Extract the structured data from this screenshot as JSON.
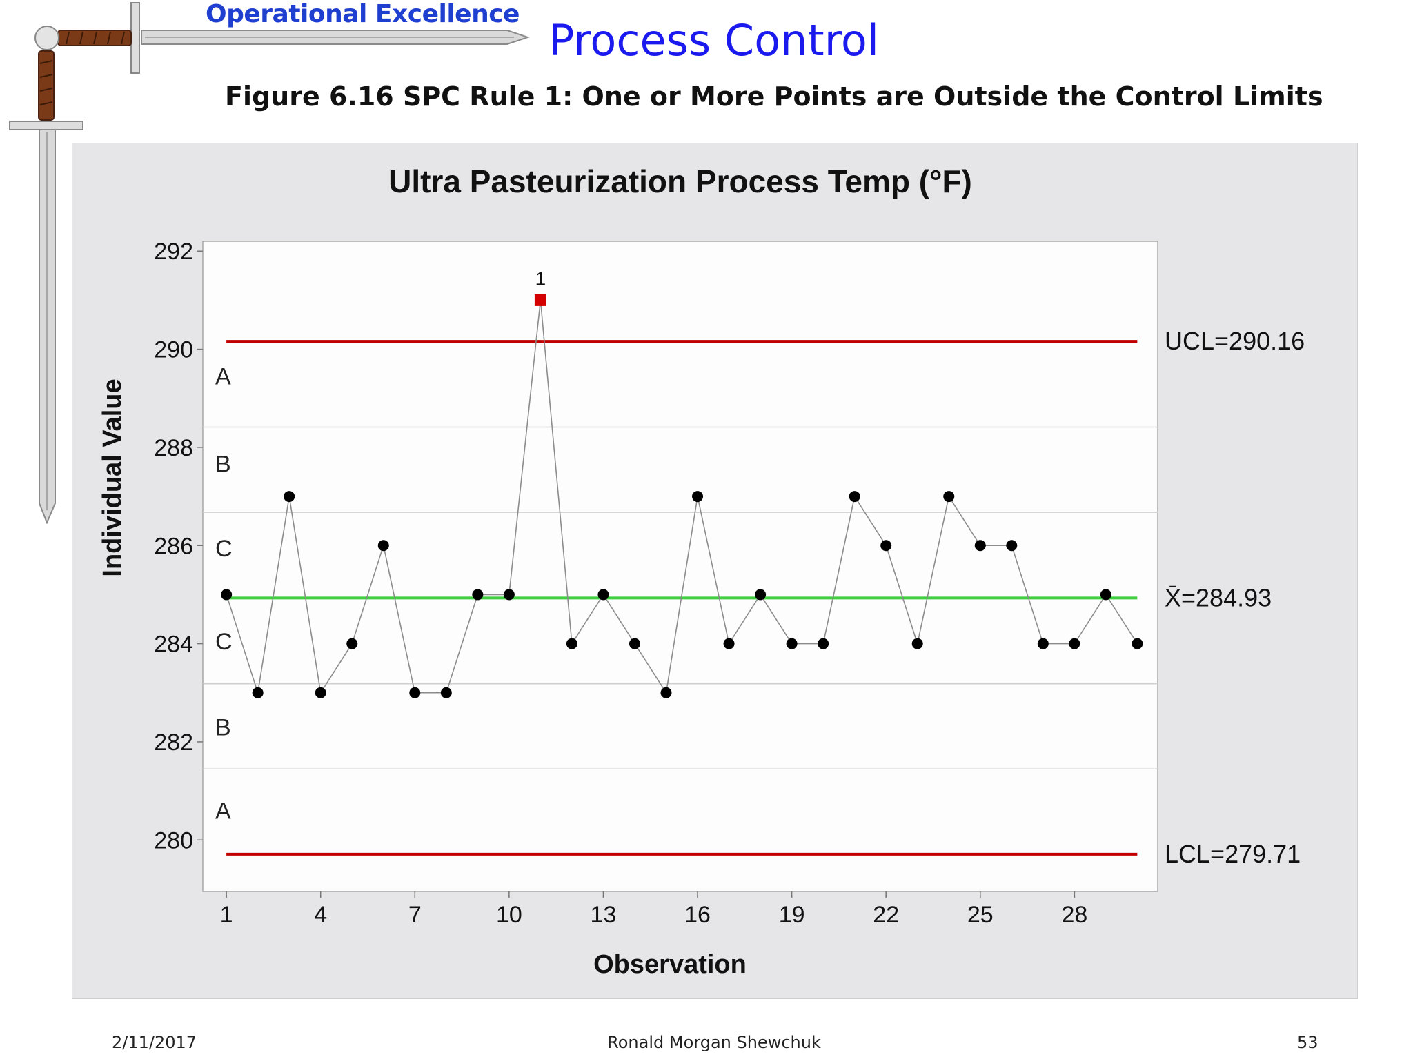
{
  "header": {
    "brand": "Operational Excellence",
    "title": "Process Control",
    "figure_caption": "Figure 6.16  SPC Rule 1:  One or More Points are Outside the Control Limits"
  },
  "footer": {
    "date": "2/11/2017",
    "author": "Ronald Morgan Shewchuk",
    "page": "53"
  },
  "icons": {
    "logo": "sword-icon"
  },
  "colors": {
    "panel_bg": "#e6e5e8",
    "plot_bg": "#fdfdfd",
    "control_limit": "#c00000",
    "center_line": "#3ed03e",
    "data_line": "#8c8c8c",
    "point": "#000000",
    "out_of_control_point": "#d40000",
    "zone_line": "#d0d0d0"
  },
  "chart_data": {
    "type": "line",
    "title": "Ultra Pasteurization Process Temp (°F)",
    "xlabel": "Observation",
    "ylabel": "Individual Value",
    "x": [
      1,
      2,
      3,
      4,
      5,
      6,
      7,
      8,
      9,
      10,
      11,
      12,
      13,
      14,
      15,
      16,
      17,
      18,
      19,
      20,
      21,
      22,
      23,
      24,
      25,
      26,
      27,
      28,
      29,
      30
    ],
    "values": [
      285,
      283,
      287,
      283,
      284,
      286,
      283,
      283,
      285,
      285,
      291,
      284,
      285,
      284,
      283,
      287,
      284,
      285,
      284,
      284,
      287,
      286,
      284,
      287,
      286,
      286,
      284,
      284,
      285,
      284
    ],
    "xticks": [
      1,
      4,
      7,
      10,
      13,
      16,
      19,
      22,
      25,
      28
    ],
    "yticks": [
      280,
      282,
      284,
      286,
      288,
      290,
      292
    ],
    "xlim": [
      0.25,
      30.65
    ],
    "ylim": [
      278.95,
      292.2
    ],
    "ucl": 290.16,
    "center": 284.93,
    "lcl": 279.71,
    "ucl_label": "UCL=290.16",
    "center_label": "X̄=284.93",
    "lcl_label": "LCL=279.71",
    "zone_lines": [
      288.4133,
      286.6767,
      283.1833,
      281.4467
    ],
    "zone_labels": [
      {
        "text": "A",
        "y": 289.45
      },
      {
        "text": "B",
        "y": 287.67
      },
      {
        "text": "C",
        "y": 285.95
      },
      {
        "text": "C",
        "y": 284.05
      },
      {
        "text": "B",
        "y": 282.3
      },
      {
        "text": "A",
        "y": 280.6
      }
    ],
    "out_of_control": [
      {
        "x": 11,
        "value": 291,
        "label": "1"
      }
    ],
    "grid": false,
    "legend": "none"
  }
}
